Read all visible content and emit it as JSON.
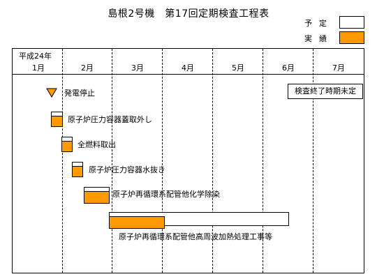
{
  "title": "島根2号機　第17回定期検査工程表",
  "legend": {
    "plan_label": "予定",
    "actual_label": "実績",
    "plan_color": "#ffffff",
    "actual_color": "#ff9900"
  },
  "timeline": {
    "era": "平成24年",
    "months": [
      "1月",
      "2月",
      "3月",
      "4月",
      "5月",
      "6月",
      "7月"
    ]
  },
  "note": "検査終了時期未定",
  "tasks": [
    {
      "label": "発電停止",
      "marker": "triangle-down"
    },
    {
      "label": "原子炉圧力容器蓋取外し"
    },
    {
      "label": "全燃料取出"
    },
    {
      "label": "原子炉圧力容器水抜き"
    },
    {
      "label": "原子炉再循環系配管他化学除染"
    },
    {
      "label": "原子炉再循環系配管他高周波加熱処理工事等"
    }
  ]
}
